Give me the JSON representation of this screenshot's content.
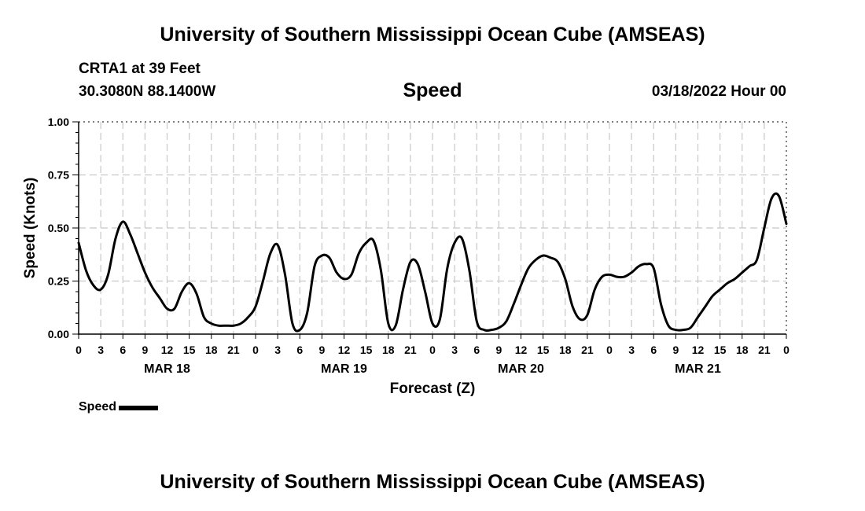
{
  "page": {
    "title": "University of Southern Mississippi Ocean Cube (AMSEAS)",
    "footer_title": "University of Southern Mississippi Ocean Cube (AMSEAS)",
    "station": "CRTA1 at 39 Feet",
    "coordinates": "30.3080N  88.1400W",
    "chart_title": "Speed",
    "datetime": "03/18/2022 Hour 00",
    "legend_label": "Speed",
    "line_color": "#000000",
    "grid_color": "#c8c8c8"
  },
  "chart_data": {
    "type": "line",
    "title": "Speed",
    "xlabel": "Forecast (Z)",
    "ylabel": "Speed (Knots)",
    "xlim": [
      0,
      96
    ],
    "ylim": [
      0,
      1
    ],
    "yticks": [
      0,
      0.25,
      0.5,
      0.75,
      1.0
    ],
    "ytick_labels": [
      "0.00",
      "0.25",
      "0.50",
      "0.75",
      "1.00"
    ],
    "xtick_hours": [
      0,
      3,
      6,
      9,
      12,
      15,
      18,
      21,
      24,
      27,
      30,
      33,
      36,
      39,
      42,
      45,
      48,
      51,
      54,
      57,
      60,
      63,
      66,
      69,
      72,
      75,
      78,
      81,
      84,
      87,
      90,
      93,
      96
    ],
    "xtick_labels": [
      "0",
      "3",
      "6",
      "9",
      "12",
      "15",
      "18",
      "21",
      "0",
      "3",
      "6",
      "9",
      "12",
      "15",
      "18",
      "21",
      "0",
      "3",
      "6",
      "9",
      "12",
      "15",
      "18",
      "21",
      "0",
      "3",
      "6",
      "9",
      "12",
      "15",
      "18",
      "21",
      "0"
    ],
    "day_labels": [
      {
        "label": "MAR 18",
        "hour": 12
      },
      {
        "label": "MAR 19",
        "hour": 36
      },
      {
        "label": "MAR 20",
        "hour": 60
      },
      {
        "label": "MAR 21",
        "hour": 84
      }
    ],
    "series": [
      {
        "name": "Speed",
        "x": [
          0,
          1,
          2,
          3,
          4,
          5,
          6,
          7,
          8,
          9,
          10,
          11,
          12,
          13,
          14,
          15,
          16,
          17,
          18,
          19,
          20,
          21,
          22,
          23,
          24,
          25,
          26,
          27,
          28,
          29,
          30,
          31,
          32,
          33,
          34,
          35,
          36,
          37,
          38,
          39,
          40,
          41,
          42,
          43,
          44,
          45,
          46,
          47,
          48,
          49,
          50,
          51,
          52,
          53,
          54,
          55,
          56,
          57,
          58,
          59,
          60,
          61,
          62,
          63,
          64,
          65,
          66,
          67,
          68,
          69,
          70,
          71,
          72,
          73,
          74,
          75,
          76,
          77,
          78,
          79,
          80,
          81,
          82,
          83,
          84,
          85,
          86,
          87,
          88,
          89,
          90,
          91,
          92,
          93,
          94,
          95,
          96
        ],
        "values": [
          0.43,
          0.3,
          0.23,
          0.21,
          0.28,
          0.45,
          0.53,
          0.47,
          0.38,
          0.29,
          0.22,
          0.17,
          0.12,
          0.12,
          0.2,
          0.24,
          0.19,
          0.08,
          0.05,
          0.04,
          0.04,
          0.04,
          0.05,
          0.08,
          0.13,
          0.25,
          0.38,
          0.42,
          0.28,
          0.05,
          0.02,
          0.1,
          0.32,
          0.37,
          0.36,
          0.29,
          0.26,
          0.28,
          0.38,
          0.43,
          0.44,
          0.3,
          0.05,
          0.04,
          0.21,
          0.34,
          0.33,
          0.2,
          0.05,
          0.07,
          0.31,
          0.43,
          0.45,
          0.3,
          0.06,
          0.02,
          0.02,
          0.03,
          0.06,
          0.14,
          0.23,
          0.31,
          0.35,
          0.37,
          0.36,
          0.34,
          0.26,
          0.13,
          0.07,
          0.09,
          0.21,
          0.27,
          0.28,
          0.27,
          0.27,
          0.29,
          0.32,
          0.33,
          0.31,
          0.14,
          0.04,
          0.02,
          0.02,
          0.03,
          0.08,
          0.13,
          0.18,
          0.21,
          0.24,
          0.26,
          0.29,
          0.32,
          0.35,
          0.5,
          0.64,
          0.65,
          0.52
        ]
      }
    ]
  }
}
